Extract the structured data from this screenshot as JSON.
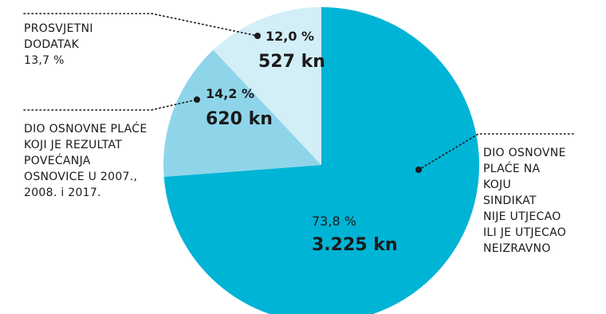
{
  "chart_data": {
    "type": "pie",
    "slices": [
      {
        "percent_label": "73,8 %",
        "amount_label": "3.225 kn",
        "value": 73.8,
        "color": "#00b4d6",
        "label_lines": [
          "DIO OSNOVNE",
          "PLAĆE NA",
          "KOJU",
          "SINDIKAT",
          "NIJE UTJECAO",
          "ILI JE UTJECAO",
          "NEIZRAVNO"
        ]
      },
      {
        "percent_label": "14,2 %",
        "amount_label": "620 kn",
        "value": 14.2,
        "color": "#8fd5ea",
        "label_lines": [
          "DIO OSNOVNE PLAĆE",
          "KOJI JE REZULTAT",
          "POVEĆANJA",
          "OSNOVICE U 2007.,",
          "2008. i 2017."
        ]
      },
      {
        "percent_label": "12,0 %",
        "amount_label": "527 kn",
        "value": 12.0,
        "color": "#d2eef7",
        "label_lines": [
          "PROSVJETNI",
          "DODATAK",
          "13,7 %"
        ]
      }
    ]
  }
}
